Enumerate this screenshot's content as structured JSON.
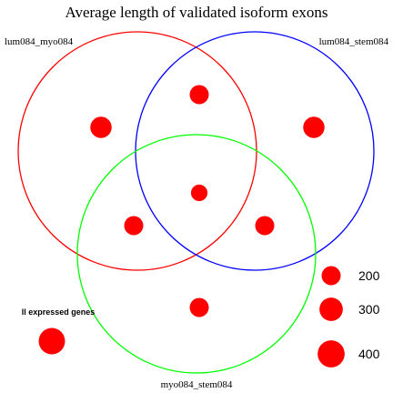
{
  "chart_data": {
    "type": "venn-bubble",
    "title": "Average length of validated isoform exons",
    "sets": [
      {
        "name": "lum084_myo084",
        "color": "#ff0000"
      },
      {
        "name": "lum084_stem084",
        "color": "#0000ff"
      },
      {
        "name": "myo084_stem084",
        "color": "#00ff00"
      }
    ],
    "regions": [
      {
        "sets": [
          "lum084_myo084"
        ],
        "value": 250
      },
      {
        "sets": [
          "lum084_stem084"
        ],
        "value": 250
      },
      {
        "sets": [
          "lum084_myo084",
          "lum084_stem084"
        ],
        "value": 200
      },
      {
        "sets": [
          "lum084_myo084",
          "myo084_stem084"
        ],
        "value": 200
      },
      {
        "sets": [
          "lum084_stem084",
          "myo084_stem084"
        ],
        "value": 200
      },
      {
        "sets": [
          "lum084_myo084",
          "lum084_stem084",
          "myo084_stem084"
        ],
        "value": 150
      },
      {
        "sets": [
          "myo084_stem084"
        ],
        "value": 200
      }
    ],
    "all_expressed": {
      "label": "ll expressed genes",
      "value": 380
    },
    "size_legend": [
      {
        "label": "200",
        "value": 200
      },
      {
        "label": "300",
        "value": 300
      },
      {
        "label": "400",
        "value": 400
      }
    ],
    "point_color": "#ff0000"
  }
}
